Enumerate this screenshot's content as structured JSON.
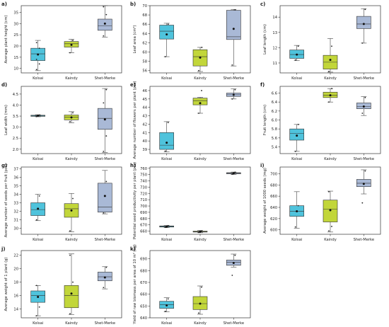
{
  "colors": {
    "Kolsai": "#4fc3dc",
    "Kaindy": "#c2d63a",
    "Shet-Merke": "#a9b9d6"
  },
  "chart_data": [
    {
      "panel": "a)",
      "type": "box",
      "ylabel": "Average plant height (cm)",
      "categories": [
        "Kolsai",
        "Kaindy",
        "Shet-Merke"
      ],
      "yticks": [
        10,
        15,
        20,
        25,
        30,
        35
      ],
      "ylim": [
        8,
        38
      ],
      "boxes": [
        {
          "category": "Kolsai",
          "min": 9,
          "q1": 13.5,
          "median": 16.5,
          "q3": 19,
          "max": 22.5,
          "mean": 16.2,
          "points": [
            9.5,
            12,
            14,
            19,
            21.5
          ]
        },
        {
          "category": "Kaindy",
          "min": 17,
          "q1": 19.5,
          "median": 21,
          "q3": 22,
          "max": 23,
          "mean": 20.5,
          "points": [
            17,
            22.5
          ]
        },
        {
          "category": "Shet-Merke",
          "min": 24,
          "q1": 27,
          "median": 29,
          "q3": 32,
          "max": 38,
          "mean": 30,
          "points": [
            24.5,
            34,
            37.5
          ]
        }
      ]
    },
    {
      "panel": "b)",
      "type": "box",
      "ylabel": "Leaf area (cm²)",
      "categories": [
        "Kolsai",
        "Kaindy",
        "Shet-Merke"
      ],
      "yticks": [
        56,
        58,
        60,
        62,
        64,
        66,
        68,
        70
      ],
      "ylim": [
        55.5,
        70
      ],
      "boxes": [
        {
          "category": "Kolsai",
          "min": 59,
          "q1": 62.8,
          "median": 64.5,
          "q3": 65.8,
          "max": 66.2,
          "mean": 63.8,
          "points": [
            59,
            66
          ]
        },
        {
          "category": "Kaindy",
          "min": 55.8,
          "q1": 57,
          "median": 59,
          "q3": 60.5,
          "max": 61,
          "mean": 58.8,
          "points": [
            56,
            61
          ]
        },
        {
          "category": "Shet-Merke",
          "min": 57,
          "q1": 62.7,
          "median": 63.3,
          "q3": 69,
          "max": 69.2,
          "mean": 65,
          "points": [
            57.2,
            69.1
          ]
        }
      ]
    },
    {
      "panel": "c)",
      "type": "box",
      "ylabel": "Leaf length (cm)",
      "categories": [
        "Kolsai",
        "Kaindy",
        "Shet-Merke"
      ],
      "yticks": [
        11,
        12,
        13,
        14
      ],
      "ylim": [
        10.35,
        14.75
      ],
      "boxes": [
        {
          "category": "Kolsai",
          "min": 11.15,
          "q1": 11.3,
          "median": 11.55,
          "q3": 11.85,
          "max": 12.15,
          "mean": 11.55,
          "points": [
            11.2,
            12.1
          ]
        },
        {
          "category": "Kaindy",
          "min": 10.4,
          "q1": 10.6,
          "median": 11.05,
          "q3": 11.5,
          "max": 12.6,
          "mean": 11.2,
          "points": [
            10.45,
            12.1
          ]
        },
        {
          "category": "Shet-Merke",
          "min": 12.3,
          "q1": 13.25,
          "median": 13.55,
          "q3": 14.05,
          "max": 14.55,
          "mean": 13.55,
          "points": [
            12.3,
            14.5
          ]
        }
      ]
    },
    {
      "panel": "d)",
      "type": "box",
      "ylabel": "Leaf width (mm)",
      "categories": [
        "Kolsai",
        "Kaindy",
        "Shet-Merke"
      ],
      "yticks": [
        2.0,
        2.5,
        3.0,
        3.5,
        4.0,
        4.5
      ],
      "ylim": [
        1.8,
        4.85
      ],
      "boxes": [
        {
          "category": "Kolsai",
          "min": 3.47,
          "q1": 3.49,
          "median": 3.52,
          "q3": 3.54,
          "max": 3.56,
          "mean": 3.52,
          "points": [
            3.48,
            3.55
          ]
        },
        {
          "category": "Kaindy",
          "min": 3.2,
          "q1": 3.33,
          "median": 3.45,
          "q3": 3.55,
          "max": 3.7,
          "mean": 3.44,
          "points": [
            3.25,
            3.65
          ]
        },
        {
          "category": "Shet-Merke",
          "min": 1.85,
          "q1": 2.9,
          "median": 3.4,
          "q3": 3.85,
          "max": 4.75,
          "mean": 3.35,
          "points": [
            1.9,
            2.6,
            4.1,
            4.7
          ]
        }
      ]
    },
    {
      "panel": "e)",
      "type": "box",
      "ylabel": "Average number of flowers per plant (pcs)",
      "categories": [
        "Kolsai",
        "Kaindy",
        "Shet-Merke"
      ],
      "yticks": [
        38,
        39,
        40,
        41,
        42,
        43,
        44,
        45,
        46
      ],
      "ylim": [
        38.5,
        46.5
      ],
      "boxes": [
        {
          "category": "Kolsai",
          "min": 38.7,
          "q1": 39,
          "median": 39.5,
          "q3": 41,
          "max": 42.3,
          "mean": 39.8,
          "points": [
            38.8,
            42.2
          ]
        },
        {
          "category": "Kaindy",
          "min": 43.3,
          "q1": 44.3,
          "median": 44.8,
          "q3": 45.1,
          "max": 45.2,
          "mean": 44.5,
          "points": [
            43.3,
            46
          ]
        },
        {
          "category": "Shet-Merke",
          "min": 45,
          "q1": 45.3,
          "median": 45.5,
          "q3": 45.7,
          "max": 46.2,
          "mean": 45.5,
          "points": [
            45,
            46.1
          ]
        }
      ]
    },
    {
      "panel": "f)",
      "type": "box",
      "ylabel": "Fruit length (cm)",
      "categories": [
        "Kolsai",
        "Kaindy",
        "Shet-Merke"
      ],
      "yticks": [
        5.4,
        5.6,
        5.8,
        6.0,
        6.2,
        6.4,
        6.6
      ],
      "ylim": [
        5.25,
        6.75
      ],
      "boxes": [
        {
          "category": "Kolsai",
          "min": 5.3,
          "q1": 5.55,
          "median": 5.7,
          "q3": 5.8,
          "max": 5.9,
          "mean": 5.65,
          "points": [
            5.3,
            5.9
          ]
        },
        {
          "category": "Kaindy",
          "min": 6.4,
          "q1": 6.5,
          "median": 6.55,
          "q3": 6.62,
          "max": 6.7,
          "mean": 6.55,
          "points": [
            6.4,
            6.7
          ]
        },
        {
          "category": "Shet-Merke",
          "min": 6.1,
          "q1": 6.25,
          "median": 6.3,
          "q3": 6.38,
          "max": 6.52,
          "mean": 6.3,
          "points": [
            6.15,
            6.5
          ]
        }
      ]
    },
    {
      "panel": "g)",
      "type": "box",
      "ylabel": "Average number of seeds per fruit (pcs)",
      "categories": [
        "Kolsai",
        "Kaindy",
        "Shet-Merke"
      ],
      "yticks": [
        30,
        31,
        32,
        33,
        34,
        35,
        36,
        37
      ],
      "ylim": [
        29.3,
        37.2
      ],
      "boxes": [
        {
          "category": "Kolsai",
          "min": 30.9,
          "q1": 31.5,
          "median": 32.2,
          "q3": 33,
          "max": 34,
          "mean": 32.3,
          "points": [
            31,
            33.8
          ]
        },
        {
          "category": "Kaindy",
          "min": 29.6,
          "q1": 31.3,
          "median": 32.3,
          "q3": 32.9,
          "max": 34.1,
          "mean": 32.1,
          "points": [
            29.7,
            33.5
          ]
        },
        {
          "category": "Shet-Merke",
          "min": 31.7,
          "q1": 31.9,
          "median": 32.5,
          "q3": 35.3,
          "max": 36.8,
          "mean": 33.8,
          "points": [
            31.8,
            35.5
          ]
        }
      ]
    },
    {
      "panel": "h)",
      "type": "box",
      "ylabel": "Potential seed productivity per plant (pcs)",
      "categories": [
        "Kolsai",
        "Kaindy",
        "Shet-Merke"
      ],
      "yticks": [
        660,
        670,
        680,
        690,
        700,
        710,
        720,
        730,
        740,
        750,
        760
      ],
      "ylim": [
        655,
        762
      ],
      "boxes": [
        {
          "category": "Kolsai",
          "min": 665.5,
          "q1": 666.5,
          "median": 667.5,
          "q3": 668.3,
          "max": 669,
          "mean": 667.3,
          "points": [
            666,
            668.8
          ]
        },
        {
          "category": "Kaindy",
          "min": 657.5,
          "q1": 658.5,
          "median": 659.2,
          "q3": 660,
          "max": 661,
          "mean": 659.2,
          "points": [
            658,
            660.5
          ]
        },
        {
          "category": "Shet-Merke",
          "min": 750,
          "q1": 751.2,
          "median": 752.2,
          "q3": 753,
          "max": 754,
          "mean": 752.2,
          "points": [
            750.5,
            753.8
          ]
        }
      ]
    },
    {
      "panel": "i)",
      "type": "box",
      "ylabel": "Average weight of 1000 seeds (mg)",
      "categories": [
        "Kolsai",
        "Kaindy",
        "Shet-Merke"
      ],
      "yticks": [
        600,
        620,
        640,
        660,
        680,
        700
      ],
      "ylim": [
        592,
        712
      ],
      "boxes": [
        {
          "category": "Kolsai",
          "min": 603,
          "q1": 624,
          "median": 633,
          "q3": 643,
          "max": 668,
          "mean": 633,
          "points": [
            605,
            643
          ]
        },
        {
          "category": "Kaindy",
          "min": 596,
          "q1": 614,
          "median": 637,
          "q3": 653,
          "max": 669,
          "mean": 635,
          "points": [
            598,
            606,
            668
          ]
        },
        {
          "category": "Shet-Merke",
          "min": 664,
          "q1": 677,
          "median": 683,
          "q3": 690,
          "max": 707,
          "mean": 682,
          "points": [
            648,
            705
          ]
        }
      ]
    },
    {
      "panel": "j)",
      "type": "box",
      "ylabel": "Average weight of 1 plant (g)",
      "categories": [
        "Kolsai",
        "Kaindy",
        "Shet-Merke"
      ],
      "yticks": [
        14,
        16,
        18,
        20,
        22
      ],
      "ylim": [
        12.7,
        22.7
      ],
      "boxes": [
        {
          "category": "Kolsai",
          "min": 13,
          "q1": 15,
          "median": 16,
          "q3": 16.7,
          "max": 17.5,
          "mean": 15.8,
          "points": [
            13,
            14.3,
            17.5
          ]
        },
        {
          "category": "Kaindy",
          "min": 13.2,
          "q1": 14.2,
          "median": 16,
          "q3": 17.5,
          "max": 22.2,
          "mean": 16.3,
          "points": [
            13.3,
            18,
            22
          ]
        },
        {
          "category": "Shet-Merke",
          "min": 17,
          "q1": 18.2,
          "median": 18.8,
          "q3": 19.5,
          "max": 20.3,
          "mean": 18.7,
          "points": [
            17.2,
            20.2
          ]
        }
      ]
    },
    {
      "panel": "k)",
      "type": "box",
      "ylabel": "Yield of raw biomass per area of 10 m² (kg)",
      "categories": [
        "Kolsai",
        "Kaindy",
        "Shet-Merke"
      ],
      "yticks": [
        640,
        650,
        660,
        670,
        680,
        690
      ],
      "ylim": [
        640,
        697
      ],
      "boxes": [
        {
          "category": "Kolsai",
          "min": 645,
          "q1": 648,
          "median": 651,
          "q3": 654,
          "max": 657,
          "mean": 650.5,
          "points": [
            645.5,
            656
          ]
        },
        {
          "category": "Kaindy",
          "min": 643,
          "q1": 647,
          "median": 652,
          "q3": 658,
          "max": 667,
          "mean": 652,
          "points": [
            644,
            666
          ]
        },
        {
          "category": "Shet-Merke",
          "min": 683,
          "q1": 684.5,
          "median": 687,
          "q3": 689,
          "max": 694,
          "mean": 686.5,
          "points": [
            676,
            693
          ]
        }
      ]
    }
  ]
}
